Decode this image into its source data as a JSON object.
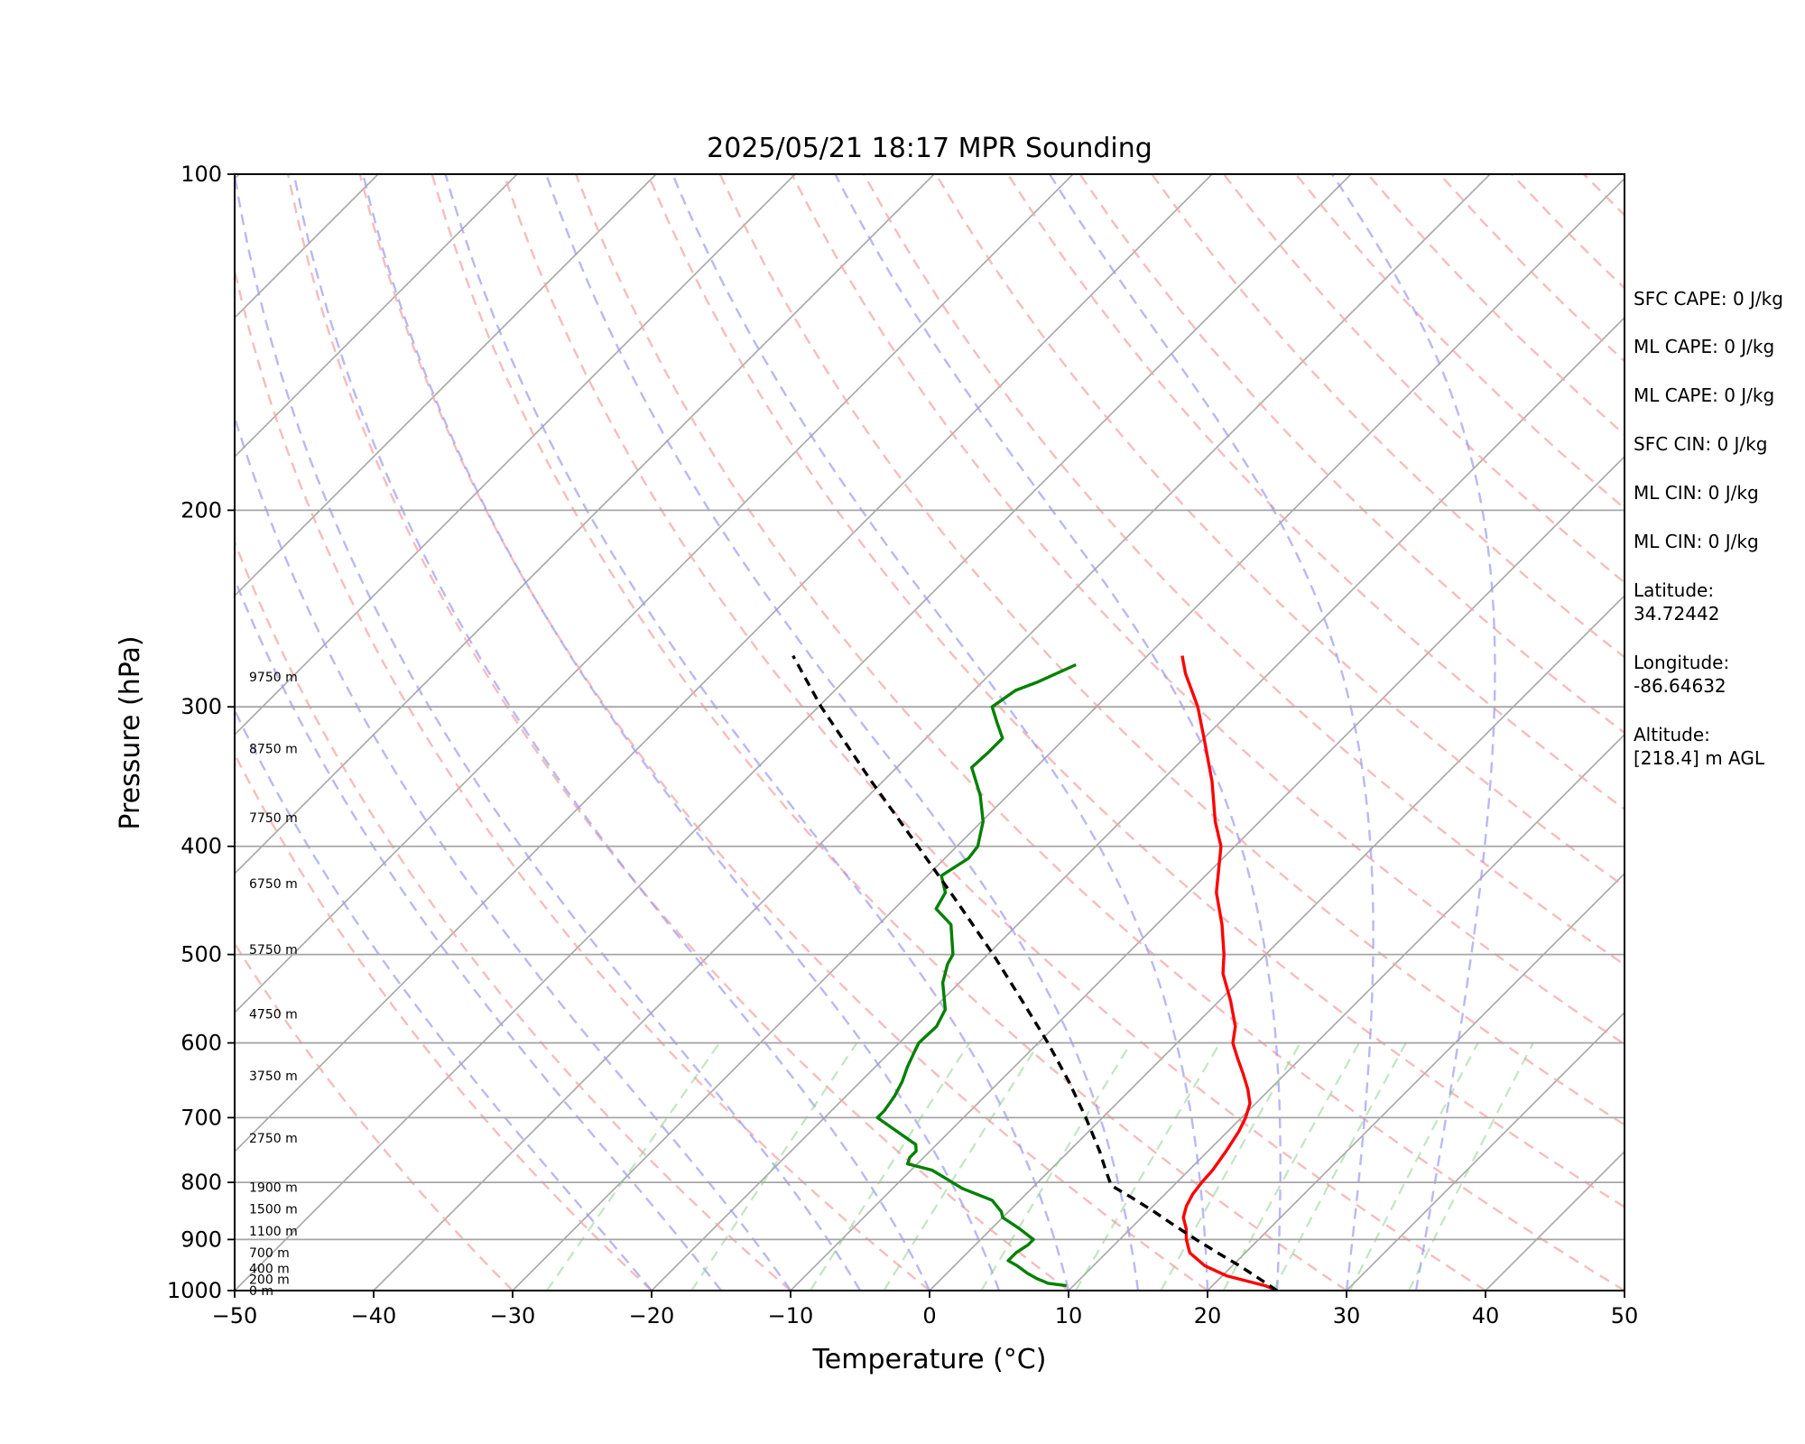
{
  "chart_data": {
    "type": "skew-t",
    "title": "2025/05/21 18:17 MPR Sounding",
    "xlabel": "Temperature (°C)",
    "ylabel": "Pressure (hPa)",
    "xlim": [
      -50,
      50
    ],
    "ylim": [
      1000,
      100
    ],
    "y_scale": "log",
    "x_ticks": [
      "−50",
      "−40",
      "−30",
      "−20",
      "−10",
      "0",
      "10",
      "20",
      "30",
      "40",
      "50"
    ],
    "y_ticks": [
      "100",
      "200",
      "300",
      "400",
      "500",
      "600",
      "700",
      "800",
      "900",
      "1000"
    ],
    "grid": true,
    "height_labels": [
      {
        "p": 1000,
        "label": "0 m"
      },
      {
        "p": 977,
        "label": "200 m"
      },
      {
        "p": 955,
        "label": "400 m"
      },
      {
        "p": 925,
        "label": "700 m"
      },
      {
        "p": 884,
        "label": "1100 m"
      },
      {
        "p": 845,
        "label": "1500 m"
      },
      {
        "p": 808,
        "label": "1900 m"
      },
      {
        "p": 730,
        "label": "2750 m"
      },
      {
        "p": 642,
        "label": "3750 m"
      },
      {
        "p": 565,
        "label": "4750 m"
      },
      {
        "p": 495,
        "label": "5750 m"
      },
      {
        "p": 432,
        "label": "6750 m"
      },
      {
        "p": 377,
        "label": "7750 m"
      },
      {
        "p": 327,
        "label": "8750 m"
      },
      {
        "p": 282,
        "label": "9750 m"
      }
    ],
    "series": [
      {
        "kind": "temperature",
        "color": "#ff0000",
        "points": [
          [
            1000,
            25.0
          ],
          [
            990,
            23.8
          ],
          [
            970,
            20.3
          ],
          [
            950,
            18.0
          ],
          [
            925,
            16.0
          ],
          [
            900,
            14.8
          ],
          [
            880,
            14.0
          ],
          [
            860,
            13.0
          ],
          [
            840,
            12.4
          ],
          [
            820,
            12.0
          ],
          [
            800,
            11.8
          ],
          [
            780,
            11.7
          ],
          [
            750,
            11.3
          ],
          [
            720,
            10.8
          ],
          [
            700,
            10.3
          ],
          [
            680,
            9.6
          ],
          [
            660,
            8.4
          ],
          [
            640,
            7.0
          ],
          [
            620,
            5.5
          ],
          [
            600,
            4.0
          ],
          [
            580,
            3.0
          ],
          [
            550,
            0.8
          ],
          [
            520,
            -1.7
          ],
          [
            500,
            -3.0
          ],
          [
            470,
            -5.3
          ],
          [
            440,
            -8.0
          ],
          [
            400,
            -11.0
          ],
          [
            380,
            -13.2
          ],
          [
            350,
            -16.3
          ],
          [
            320,
            -20.0
          ],
          [
            300,
            -22.7
          ],
          [
            280,
            -26.0
          ],
          [
            270,
            -27.5
          ]
        ]
      },
      {
        "kind": "dewpoint",
        "color": "#008000",
        "points": [
          [
            990,
            9.5
          ],
          [
            985,
            8.0
          ],
          [
            975,
            6.8
          ],
          [
            965,
            5.8
          ],
          [
            950,
            4.5
          ],
          [
            940,
            3.5
          ],
          [
            925,
            3.5
          ],
          [
            910,
            3.8
          ],
          [
            900,
            3.8
          ],
          [
            880,
            2.0
          ],
          [
            860,
            0.0
          ],
          [
            850,
            -0.5
          ],
          [
            830,
            -2.0
          ],
          [
            810,
            -5.0
          ],
          [
            790,
            -7.3
          ],
          [
            780,
            -8.5
          ],
          [
            770,
            -10.7
          ],
          [
            760,
            -11.0
          ],
          [
            750,
            -11.0
          ],
          [
            740,
            -11.5
          ],
          [
            700,
            -16.2
          ],
          [
            690,
            -16.2
          ],
          [
            670,
            -16.5
          ],
          [
            650,
            -17.0
          ],
          [
            630,
            -17.7
          ],
          [
            610,
            -18.3
          ],
          [
            600,
            -18.6
          ],
          [
            580,
            -18.5
          ],
          [
            560,
            -19.1
          ],
          [
            530,
            -21.2
          ],
          [
            510,
            -22.2
          ],
          [
            500,
            -22.5
          ],
          [
            470,
            -24.8
          ],
          [
            455,
            -27.0
          ],
          [
            440,
            -27.5
          ],
          [
            425,
            -29.0
          ],
          [
            410,
            -28.3
          ],
          [
            400,
            -28.5
          ],
          [
            380,
            -29.9
          ],
          [
            360,
            -32.0
          ],
          [
            340,
            -34.6
          ],
          [
            330,
            -34.5
          ],
          [
            320,
            -34.5
          ],
          [
            310,
            -36.0
          ],
          [
            300,
            -37.5
          ],
          [
            290,
            -37.0
          ],
          [
            285,
            -36.0
          ],
          [
            275,
            -34.5
          ]
        ]
      },
      {
        "kind": "parcel",
        "color": "#000000",
        "points": [
          [
            1000,
            25.0
          ],
          [
            975,
            22.8
          ],
          [
            950,
            20.5
          ],
          [
            925,
            18.0
          ],
          [
            900,
            15.5
          ],
          [
            875,
            13.0
          ],
          [
            850,
            10.5
          ],
          [
            825,
            7.8
          ],
          [
            805,
            5.5
          ],
          [
            800,
            5.2
          ],
          [
            780,
            4.0
          ],
          [
            750,
            2.2
          ],
          [
            700,
            -1.2
          ],
          [
            650,
            -5.0
          ],
          [
            600,
            -9.3
          ],
          [
            550,
            -14.2
          ],
          [
            500,
            -19.6
          ],
          [
            450,
            -25.8
          ],
          [
            400,
            -32.8
          ],
          [
            350,
            -40.8
          ],
          [
            300,
            -49.8
          ],
          [
            270,
            -55.5
          ]
        ]
      }
    ],
    "info_lines": [
      "SFC CAPE: 0 J/kg",
      "ML CAPE: 0 J/kg",
      "ML CAPE: 0 J/kg",
      "SFC CIN: 0 J/kg",
      "ML CIN: 0 J/kg",
      "ML CIN: 0 J/kg",
      "Latitude:\n34.72442",
      "Longitude:\n-86.64632",
      "Altitude:\n[218.4] m AGL"
    ]
  }
}
